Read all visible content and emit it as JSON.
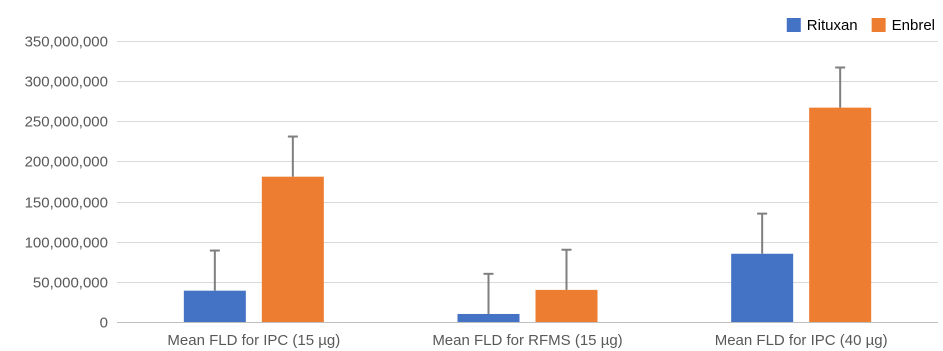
{
  "chart_data": {
    "type": "bar",
    "categories": [
      "Mean FLD for IPC (15 µg)",
      "Mean FLD for RFMS (15 µg)",
      "Mean FLD for IPC (40 µg)"
    ],
    "series": [
      {
        "name": "Rituxan",
        "color": "#4472c4",
        "values": [
          39000000,
          10000000,
          85000000
        ],
        "error_plus": [
          50000000,
          50000000,
          50000000
        ]
      },
      {
        "name": "Enbrel",
        "color": "#ed7d31",
        "values": [
          181000000,
          40000000,
          267000000
        ],
        "error_plus": [
          50000000,
          50000000,
          50000000
        ]
      }
    ],
    "ylim": [
      0,
      350000000
    ],
    "yticks": [
      0,
      50000000,
      100000000,
      150000000,
      200000000,
      250000000,
      300000000,
      350000000
    ],
    "ytick_labels": [
      "0",
      "50,000,000",
      "100,000,000",
      "150,000,000",
      "200,000,000",
      "250,000,000",
      "300,000,000",
      "350,000,000"
    ],
    "legend_position": "top-right",
    "grid": true
  }
}
